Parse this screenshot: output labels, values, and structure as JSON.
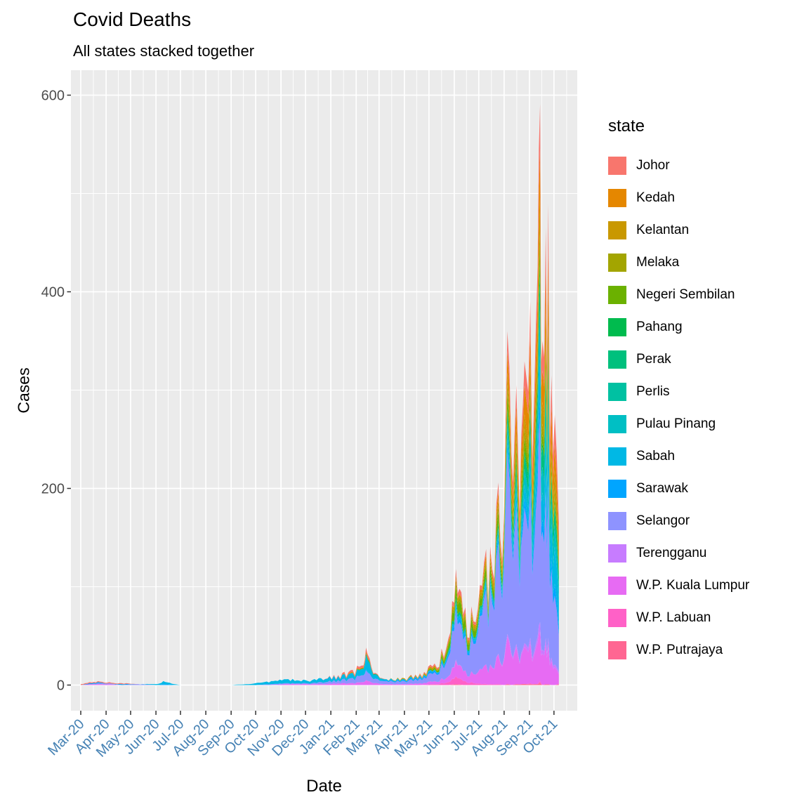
{
  "legend": {
    "title": "state"
  },
  "style": {
    "panel_bg": "#EBEBEB",
    "grid_color": "#FFFFFF",
    "x_tick_label_color": "#4682B4",
    "y_tick_label_color": "#4D4D4D",
    "tick_mark_color": "#333333"
  },
  "chart_data": {
    "type": "area",
    "stacked": true,
    "title": "Covid Deaths",
    "subtitle": "All states stacked together",
    "xlabel": "Date",
    "ylabel": "Cases",
    "ylim": [
      0,
      600
    ],
    "y_ticks": [
      0,
      200,
      400,
      600
    ],
    "y_tick_labels": [
      "0",
      "200",
      "400",
      "600"
    ],
    "y_minor_ticks": [
      100,
      300,
      500
    ],
    "x_tick_labels": [
      "Mar-20",
      "Apr-20",
      "May-20",
      "Jun-20",
      "Jul-20",
      "Aug-20",
      "Sep-20",
      "Oct-20",
      "Nov-20",
      "Dec-20",
      "Jan-21",
      "Feb-21",
      "Mar-21",
      "Apr-21",
      "May-21",
      "Jun-21",
      "Jul-21",
      "Aug-21",
      "Sep-21",
      "Oct-21"
    ],
    "legend_position": "right",
    "grid": true,
    "x": [
      "2020-03-01",
      "2020-03-12",
      "2020-03-22",
      "2020-04-05",
      "2020-04-20",
      "2020-05-10",
      "2020-06-01",
      "2020-06-10",
      "2020-07-01",
      "2020-09-01",
      "2020-10-01",
      "2020-10-20",
      "2020-11-10",
      "2020-12-01",
      "2020-12-20",
      "2021-01-10",
      "2021-01-25",
      "2021-02-10",
      "2021-02-13",
      "2021-02-22",
      "2021-03-10",
      "2021-04-01",
      "2021-04-20",
      "2021-05-08",
      "2021-05-25",
      "2021-06-03",
      "2021-06-12",
      "2021-06-22",
      "2021-07-05",
      "2021-07-15",
      "2021-07-25",
      "2021-08-01",
      "2021-08-05",
      "2021-08-10",
      "2021-08-16",
      "2021-08-22",
      "2021-08-28",
      "2021-09-02",
      "2021-09-07",
      "2021-09-11",
      "2021-09-14",
      "2021-09-17",
      "2021-09-21",
      "2021-09-24",
      "2021-09-28",
      "2021-10-02",
      "2021-10-07"
    ],
    "series": [
      {
        "name": "Johor",
        "color": "#F8766D",
        "values": [
          1,
          1,
          1,
          1,
          1,
          0,
          0,
          0,
          0,
          0,
          0,
          0,
          0,
          0,
          0,
          1,
          2,
          2,
          4,
          1,
          0,
          0,
          1,
          2,
          3,
          6,
          4,
          4,
          4,
          6,
          9,
          8,
          20,
          14,
          20,
          18,
          24,
          30,
          25,
          35,
          45,
          30,
          42,
          46,
          32,
          30,
          18
        ]
      },
      {
        "name": "Kedah",
        "color": "#E58700",
        "values": [
          0,
          0,
          0,
          0,
          0,
          0,
          0,
          0,
          0,
          0,
          0,
          0,
          0,
          0,
          0,
          0,
          1,
          1,
          2,
          0,
          0,
          0,
          0,
          0,
          0,
          1,
          1,
          2,
          3,
          5,
          8,
          8,
          22,
          16,
          24,
          22,
          28,
          34,
          27,
          38,
          50,
          32,
          44,
          46,
          30,
          26,
          15
        ]
      },
      {
        "name": "Kelantan",
        "color": "#C99800",
        "values": [
          0,
          0,
          0,
          0,
          0,
          0,
          0,
          0,
          0,
          0,
          0,
          0,
          0,
          0,
          0,
          0,
          0,
          0,
          0,
          0,
          0,
          1,
          1,
          2,
          2,
          4,
          2,
          3,
          3,
          4,
          6,
          5,
          12,
          9,
          12,
          11,
          14,
          20,
          16,
          24,
          35,
          22,
          30,
          32,
          22,
          20,
          12
        ]
      },
      {
        "name": "Melaka",
        "color": "#A3A500",
        "values": [
          0,
          0,
          0,
          0,
          0,
          0,
          0,
          0,
          0,
          0,
          0,
          0,
          0,
          0,
          0,
          0,
          0,
          0,
          0,
          0,
          0,
          0,
          0,
          0,
          2,
          4,
          3,
          3,
          3,
          4,
          6,
          5,
          10,
          8,
          10,
          9,
          10,
          12,
          10,
          13,
          18,
          11,
          14,
          15,
          10,
          9,
          5
        ]
      },
      {
        "name": "Negeri Sembilan",
        "color": "#6BB100",
        "values": [
          0,
          0,
          0,
          0,
          0,
          0,
          0,
          0,
          0,
          0,
          0,
          0,
          0,
          0,
          0,
          0,
          0,
          0,
          0,
          0,
          0,
          0,
          0,
          2,
          5,
          12,
          8,
          9,
          7,
          9,
          12,
          10,
          15,
          10,
          12,
          10,
          11,
          12,
          9,
          12,
          15,
          9,
          12,
          12,
          8,
          6,
          4
        ]
      },
      {
        "name": "Pahang",
        "color": "#00BB4E",
        "values": [
          0,
          0,
          0,
          0,
          0,
          0,
          0,
          0,
          0,
          0,
          0,
          0,
          0,
          0,
          0,
          0,
          0,
          0,
          0,
          0,
          0,
          0,
          0,
          0,
          0,
          0,
          0,
          0,
          0,
          0,
          0,
          0,
          2,
          1,
          3,
          2,
          4,
          6,
          4,
          7,
          10,
          4,
          7,
          7,
          3,
          3,
          2
        ]
      },
      {
        "name": "Perak",
        "color": "#00C07D",
        "values": [
          0,
          0,
          0,
          0,
          0,
          0,
          0,
          0,
          0,
          0,
          0,
          0,
          0,
          0,
          0,
          0,
          0,
          1,
          2,
          1,
          0,
          0,
          0,
          0,
          2,
          4,
          2,
          2,
          2,
          3,
          5,
          5,
          12,
          8,
          12,
          11,
          14,
          20,
          16,
          22,
          35,
          20,
          28,
          30,
          20,
          18,
          11
        ]
      },
      {
        "name": "Perlis",
        "color": "#00C1A2",
        "values": [
          0,
          0,
          0,
          0,
          0,
          0,
          0,
          0,
          0,
          0,
          0,
          0,
          0,
          0,
          0,
          0,
          0,
          0,
          0,
          0,
          0,
          0,
          0,
          0,
          0,
          0,
          0,
          0,
          0,
          0,
          0,
          0,
          0,
          0,
          0,
          0,
          0,
          0,
          0,
          0,
          1,
          0,
          0,
          0,
          0,
          0,
          0
        ]
      },
      {
        "name": "Pulau Pinang",
        "color": "#00BFC4",
        "values": [
          0,
          0,
          0,
          0,
          0,
          0,
          0,
          0,
          0,
          0,
          0,
          0,
          0,
          0,
          0,
          0,
          0,
          0,
          0,
          0,
          0,
          0,
          0,
          0,
          0,
          0,
          0,
          0,
          2,
          3,
          4,
          5,
          12,
          8,
          12,
          12,
          16,
          24,
          20,
          28,
          45,
          26,
          34,
          36,
          26,
          22,
          13
        ]
      },
      {
        "name": "Sabah",
        "color": "#00B8E5",
        "values": [
          0,
          0,
          0,
          0,
          0,
          0,
          1,
          3,
          0,
          0,
          2,
          3,
          4,
          3,
          4,
          4,
          5,
          6,
          14,
          4,
          1,
          1,
          1,
          1,
          2,
          4,
          3,
          3,
          3,
          4,
          6,
          5,
          10,
          8,
          10,
          10,
          14,
          22,
          18,
          28,
          45,
          28,
          40,
          45,
          34,
          38,
          26
        ]
      },
      {
        "name": "Sarawak",
        "color": "#00A5FF",
        "values": [
          0,
          1,
          1,
          0,
          1,
          0,
          0,
          1,
          0,
          0,
          0,
          0,
          0,
          0,
          0,
          0,
          0,
          0,
          1,
          0,
          1,
          1,
          2,
          2,
          3,
          5,
          3,
          4,
          3,
          4,
          6,
          5,
          8,
          6,
          8,
          7,
          9,
          12,
          10,
          14,
          20,
          12,
          16,
          18,
          12,
          12,
          8
        ]
      },
      {
        "name": "Selangor",
        "color": "#8E93FF",
        "values": [
          0,
          0,
          1,
          1,
          0,
          1,
          0,
          0,
          0,
          0,
          0,
          1,
          1,
          1,
          2,
          3,
          5,
          7,
          10,
          4,
          3,
          3,
          5,
          9,
          20,
          52,
          32,
          36,
          55,
          78,
          112,
          92,
          185,
          115,
          140,
          110,
          130,
          150,
          110,
          155,
          208,
          120,
          150,
          155,
          90,
          70,
          38
        ]
      },
      {
        "name": "Terengganu",
        "color": "#C77CFF",
        "values": [
          0,
          0,
          0,
          0,
          0,
          0,
          0,
          0,
          0,
          0,
          0,
          0,
          0,
          0,
          0,
          0,
          0,
          0,
          0,
          0,
          0,
          0,
          0,
          0,
          0,
          1,
          0,
          0,
          0,
          0,
          1,
          1,
          3,
          2,
          3,
          2,
          4,
          6,
          4,
          6,
          10,
          4,
          7,
          7,
          4,
          3,
          2
        ]
      },
      {
        "name": "W.P. Kuala Lumpur",
        "color": "#E76BF3",
        "values": [
          0,
          1,
          1,
          1,
          0,
          0,
          0,
          0,
          0,
          0,
          0,
          0,
          1,
          1,
          1,
          2,
          2,
          3,
          5,
          2,
          1,
          1,
          2,
          3,
          6,
          16,
          10,
          11,
          15,
          20,
          30,
          26,
          48,
          30,
          38,
          30,
          36,
          40,
          30,
          42,
          50,
          32,
          40,
          40,
          24,
          18,
          10
        ]
      },
      {
        "name": "W.P. Labuan",
        "color": "#FF61C7",
        "values": [
          0,
          0,
          0,
          0,
          0,
          0,
          0,
          0,
          0,
          0,
          0,
          0,
          0,
          0,
          0,
          0,
          0,
          0,
          0,
          0,
          0,
          0,
          0,
          1,
          3,
          8,
          4,
          3,
          1,
          1,
          1,
          0,
          0,
          0,
          0,
          0,
          0,
          1,
          0,
          0,
          2,
          0,
          0,
          0,
          0,
          0,
          0
        ]
      },
      {
        "name": "W.P. Putrajaya",
        "color": "#FF6692",
        "values": [
          0,
          0,
          0,
          0,
          0,
          0,
          0,
          0,
          0,
          0,
          0,
          0,
          0,
          0,
          0,
          0,
          0,
          0,
          0,
          0,
          0,
          0,
          0,
          0,
          0,
          1,
          0,
          0,
          0,
          0,
          0,
          0,
          1,
          0,
          1,
          1,
          1,
          1,
          1,
          1,
          2,
          0,
          1,
          1,
          0,
          0,
          1
        ]
      }
    ]
  }
}
